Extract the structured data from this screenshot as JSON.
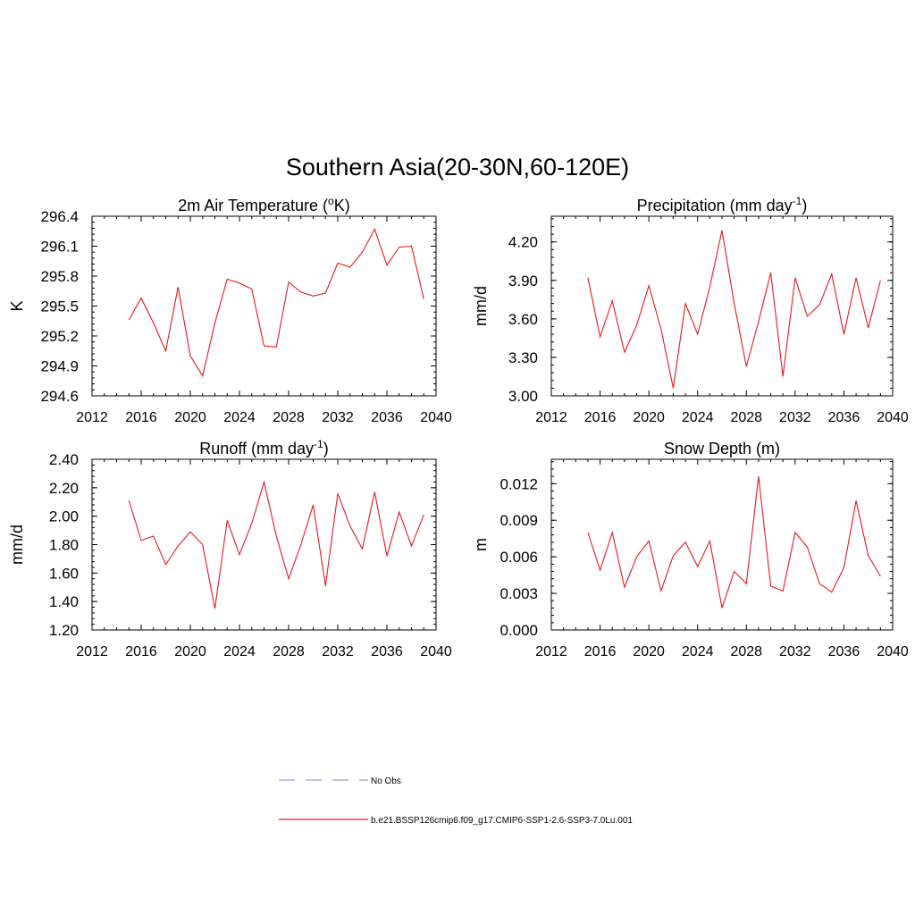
{
  "main_title": "Southern Asia(20-30N,60-120E)",
  "line_color": "#e8191c",
  "obs_line_color": "#9b9bdb",
  "legend": {
    "obs_label": "No Obs",
    "model_label": "b.e21.BSSP126cmip6.f09_g17.CMIP6-SSP1-2.6-SSP3-7.0Lu.001"
  },
  "chart_data": [
    {
      "type": "line",
      "title": "2m Air Temperature (",
      "title_sup": "o",
      "title_after": "K)",
      "ylabel": "K",
      "xlim": [
        2012,
        2040
      ],
      "ylim": [
        294.6,
        296.4
      ],
      "xticks": [
        2012,
        2016,
        2020,
        2024,
        2028,
        2032,
        2036,
        2040
      ],
      "xtick_labels": [
        "2012",
        "2016",
        "2020",
        "2024",
        "2028",
        "2032",
        "2036",
        "2040"
      ],
      "yticks": [
        294.6,
        294.9,
        295.2,
        295.5,
        295.8,
        296.1,
        296.4
      ],
      "ytick_labels": [
        "294.6",
        "294.9",
        "295.2",
        "295.5",
        "295.8",
        "296.1",
        "296.4"
      ],
      "x": [
        2015,
        2016,
        2017,
        2018,
        2019,
        2020,
        2021,
        2022,
        2023,
        2024,
        2025,
        2026,
        2027,
        2028,
        2029,
        2030,
        2031,
        2032,
        2033,
        2034,
        2035,
        2036,
        2037,
        2038,
        2039
      ],
      "values": [
        295.36,
        295.58,
        295.33,
        295.05,
        295.69,
        295.0,
        294.8,
        295.33,
        295.77,
        295.73,
        295.67,
        295.1,
        295.09,
        295.74,
        295.64,
        295.6,
        295.63,
        295.93,
        295.89,
        296.04,
        296.27,
        295.91,
        296.09,
        296.1,
        295.57
      ]
    },
    {
      "type": "line",
      "title": "Precipitation (mm day",
      "title_sup": "-1",
      "title_after": ")",
      "ylabel": "mm/d",
      "xlim": [
        2012,
        2040
      ],
      "ylim": [
        3.0,
        4.4
      ],
      "xticks": [
        2012,
        2016,
        2020,
        2024,
        2028,
        2032,
        2036,
        2040
      ],
      "xtick_labels": [
        "2012",
        "2016",
        "2020",
        "2024",
        "2028",
        "2032",
        "2036",
        "2040"
      ],
      "yticks": [
        3.0,
        3.3,
        3.6,
        3.9,
        4.2
      ],
      "ytick_labels": [
        "3.00",
        "3.30",
        "3.60",
        "3.90",
        "4.20"
      ],
      "x": [
        2015,
        2016,
        2017,
        2018,
        2019,
        2020,
        2021,
        2022,
        2023,
        2024,
        2025,
        2026,
        2027,
        2028,
        2029,
        2030,
        2031,
        2032,
        2033,
        2034,
        2035,
        2036,
        2037,
        2038,
        2039
      ],
      "values": [
        3.92,
        3.46,
        3.74,
        3.34,
        3.55,
        3.86,
        3.52,
        3.06,
        3.72,
        3.48,
        3.85,
        4.29,
        3.72,
        3.23,
        3.58,
        3.96,
        3.15,
        3.92,
        3.62,
        3.71,
        3.95,
        3.48,
        3.92,
        3.53,
        3.9
      ]
    },
    {
      "type": "line",
      "title": "Runoff (mm day",
      "title_sup": "-1",
      "title_after": ")",
      "ylabel": "mm/d",
      "xlim": [
        2012,
        2040
      ],
      "ylim": [
        1.2,
        2.4
      ],
      "xticks": [
        2012,
        2016,
        2020,
        2024,
        2028,
        2032,
        2036,
        2040
      ],
      "xtick_labels": [
        "2012",
        "2016",
        "2020",
        "2024",
        "2028",
        "2032",
        "2036",
        "2040"
      ],
      "yticks": [
        1.2,
        1.4,
        1.6,
        1.8,
        2.0,
        2.2,
        2.4
      ],
      "ytick_labels": [
        "1.20",
        "1.40",
        "1.60",
        "1.80",
        "2.00",
        "2.20",
        "2.40"
      ],
      "x": [
        2015,
        2016,
        2017,
        2018,
        2019,
        2020,
        2021,
        2022,
        2023,
        2024,
        2025,
        2026,
        2027,
        2028,
        2029,
        2030,
        2031,
        2032,
        2033,
        2034,
        2035,
        2036,
        2037,
        2038,
        2039
      ],
      "values": [
        2.11,
        1.83,
        1.86,
        1.66,
        1.79,
        1.89,
        1.8,
        1.35,
        1.97,
        1.73,
        1.95,
        2.24,
        1.86,
        1.56,
        1.8,
        2.08,
        1.51,
        2.16,
        1.93,
        1.77,
        2.17,
        1.72,
        2.03,
        1.79,
        2.01
      ]
    },
    {
      "type": "line",
      "title": "Snow Depth (m)",
      "title_sup": "",
      "title_after": "",
      "ylabel": "m",
      "xlim": [
        2012,
        2040
      ],
      "ylim": [
        0.0,
        0.014
      ],
      "xticks": [
        2012,
        2016,
        2020,
        2024,
        2028,
        2032,
        2036,
        2040
      ],
      "xtick_labels": [
        "2012",
        "2016",
        "2020",
        "2024",
        "2028",
        "2032",
        "2036",
        "2040"
      ],
      "yticks": [
        0.0,
        0.003,
        0.006,
        0.009,
        0.012
      ],
      "ytick_labels": [
        "0.000",
        "0.003",
        "0.006",
        "0.009",
        "0.012"
      ],
      "x": [
        2015,
        2016,
        2017,
        2018,
        2019,
        2020,
        2021,
        2022,
        2023,
        2024,
        2025,
        2026,
        2027,
        2028,
        2029,
        2030,
        2031,
        2032,
        2033,
        2034,
        2035,
        2036,
        2037,
        2038,
        2039
      ],
      "values": [
        0.008,
        0.0049,
        0.008,
        0.0035,
        0.006,
        0.0073,
        0.0032,
        0.0061,
        0.0072,
        0.0052,
        0.0073,
        0.0018,
        0.0048,
        0.0038,
        0.0126,
        0.0036,
        0.0032,
        0.008,
        0.0068,
        0.0038,
        0.0031,
        0.0051,
        0.0106,
        0.0061,
        0.0044
      ]
    }
  ]
}
